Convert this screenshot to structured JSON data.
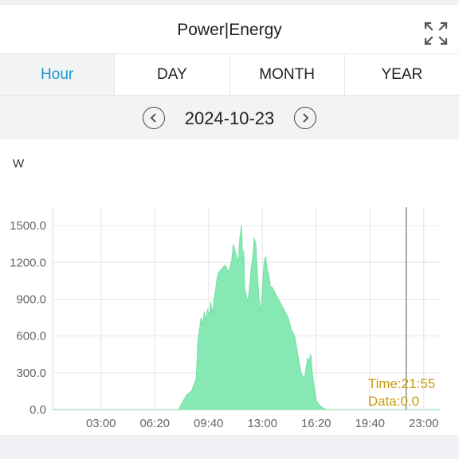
{
  "header": {
    "title": "Power|Energy",
    "fullscreen_icon": "expand-icon"
  },
  "tabs": [
    {
      "label": "Hour",
      "active": true
    },
    {
      "label": "DAY",
      "active": false
    },
    {
      "label": "MONTH",
      "active": false
    },
    {
      "label": "YEAR",
      "active": false
    }
  ],
  "date_nav": {
    "date": "2024-10-23",
    "prev_icon": "chevron-left-icon",
    "next_icon": "chevron-right-icon"
  },
  "colors": {
    "accent": "#1996c9",
    "area_fill": "#86e8b2",
    "tooltip": "#c89b12"
  },
  "chart_data": {
    "type": "area",
    "ylabel": "W",
    "ylim": [
      0,
      1650
    ],
    "yticks": [
      "0.0",
      "300.0",
      "600.0",
      "900.0",
      "1200.0",
      "1500.0"
    ],
    "ytick_values": [
      0,
      300,
      600,
      900,
      1200,
      1500
    ],
    "xlim_hours": [
      0,
      24
    ],
    "xticks": [
      "03:00",
      "06:20",
      "09:40",
      "13:00",
      "16:20",
      "19:40",
      "23:00"
    ],
    "xtick_hours": [
      3.0,
      6.333,
      9.667,
      13.0,
      16.333,
      19.667,
      23.0
    ],
    "grid": true,
    "series": [
      {
        "x_hours": [
          0,
          7.8,
          8.0,
          8.3,
          8.6,
          8.9,
          9.0,
          9.1,
          9.2,
          9.3,
          9.4,
          9.5,
          9.6,
          9.7,
          9.8,
          9.9,
          10.0,
          10.1,
          10.2,
          10.3,
          10.5,
          10.7,
          10.9,
          11.1,
          11.2,
          11.4,
          11.5,
          11.6,
          11.7,
          11.75,
          11.8,
          11.85,
          11.9,
          12.0,
          12.1,
          12.2,
          12.3,
          12.4,
          12.5,
          12.6,
          12.7,
          12.8,
          12.9,
          13.0,
          13.1,
          13.2,
          13.3,
          13.4,
          13.5,
          13.6,
          13.8,
          14.0,
          14.2,
          14.4,
          14.6,
          14.8,
          15.0,
          15.2,
          15.4,
          15.6,
          15.8,
          15.9,
          16.0,
          16.1,
          16.2,
          16.3,
          16.4,
          16.6,
          16.8,
          17.0,
          24
        ],
        "values": [
          0,
          0,
          50,
          120,
          150,
          250,
          560,
          650,
          750,
          700,
          800,
          730,
          820,
          760,
          880,
          780,
          900,
          980,
          1080,
          1120,
          1150,
          1180,
          1120,
          1220,
          1350,
          1250,
          1200,
          1400,
          1500,
          1380,
          1150,
          1300,
          1000,
          930,
          880,
          1000,
          1150,
          1250,
          1400,
          1350,
          1100,
          900,
          800,
          1000,
          1200,
          1250,
          1150,
          1100,
          1000,
          1000,
          950,
          900,
          850,
          800,
          750,
          650,
          600,
          450,
          300,
          250,
          420,
          400,
          450,
          300,
          200,
          100,
          60,
          30,
          10,
          0,
          0
        ]
      }
    ],
    "cursor": {
      "time": "Time:21:55",
      "data": "Data:0.0",
      "x_hours": 21.917
    }
  }
}
